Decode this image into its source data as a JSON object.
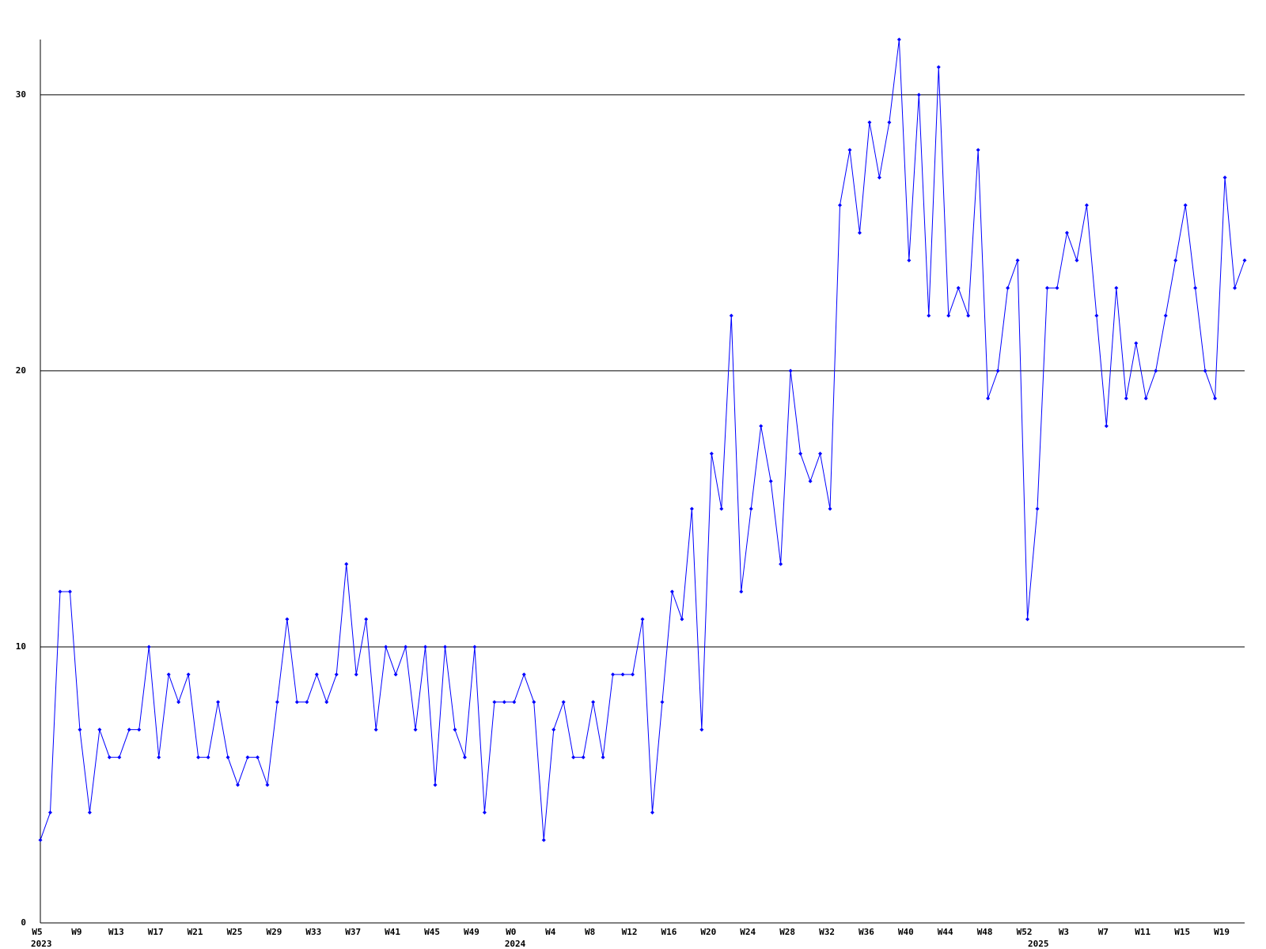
{
  "chart_data": {
    "type": "line",
    "categories": [
      "W5",
      null,
      null,
      null,
      "W9",
      null,
      null,
      null,
      "W13",
      null,
      null,
      null,
      "W17",
      null,
      null,
      null,
      "W21",
      null,
      null,
      null,
      "W25",
      null,
      null,
      null,
      "W29",
      null,
      null,
      null,
      "W33",
      null,
      null,
      null,
      "W37",
      null,
      null,
      null,
      "W41",
      null,
      null,
      null,
      "W45",
      null,
      null,
      null,
      "W49",
      null,
      null,
      null,
      "W0",
      null,
      null,
      null,
      "W4",
      null,
      null,
      null,
      "W8",
      null,
      null,
      null,
      "W12",
      null,
      null,
      null,
      "W16",
      null,
      null,
      null,
      "W20",
      null,
      null,
      null,
      "W24",
      null,
      null,
      null,
      "W28",
      null,
      null,
      null,
      "W32",
      null,
      null,
      null,
      "W36",
      null,
      null,
      null,
      "W40",
      null,
      null,
      null,
      "W44",
      null,
      null,
      null,
      "W48",
      null,
      null,
      null,
      "W52",
      null,
      null,
      null,
      "W3",
      null,
      null,
      null,
      "W7",
      null,
      null,
      null,
      "W11",
      null,
      null,
      null,
      "W15",
      null,
      null,
      null,
      "W19",
      null,
      null
    ],
    "year_labels": [
      {
        "index": 0,
        "label": "2023"
      },
      {
        "index": 48,
        "label": "2024"
      },
      {
        "index": 101,
        "label": "2025"
      }
    ],
    "series": [
      {
        "color": "#0000ff",
        "values": [
          3,
          4,
          12,
          12,
          7,
          4,
          7,
          6,
          6,
          7,
          7,
          10,
          6,
          9,
          8,
          9,
          6,
          6,
          8,
          6,
          5,
          6,
          6,
          5,
          8,
          11,
          8,
          8,
          9,
          8,
          9,
          13,
          9,
          11,
          7,
          10,
          9,
          10,
          7,
          10,
          5,
          10,
          7,
          6,
          10,
          4,
          8,
          8,
          8,
          9,
          8,
          3,
          7,
          8,
          6,
          6,
          8,
          6,
          9,
          9,
          9,
          11,
          4,
          8,
          12,
          11,
          15,
          7,
          17,
          15,
          22,
          12,
          15,
          18,
          16,
          13,
          20,
          17,
          16,
          17,
          15,
          26,
          28,
          25,
          29,
          27,
          29,
          32,
          24,
          30,
          22,
          31,
          22,
          23,
          22,
          28,
          19,
          20,
          23,
          24,
          11,
          15,
          23,
          23,
          25,
          24,
          26,
          22,
          18,
          23,
          19,
          21,
          19,
          20,
          22,
          24,
          26,
          23,
          20,
          19,
          27,
          23,
          24
        ]
      }
    ],
    "ylim": [
      0,
      32
    ],
    "yticks": [
      0,
      10,
      20,
      30
    ],
    "grid": true
  }
}
